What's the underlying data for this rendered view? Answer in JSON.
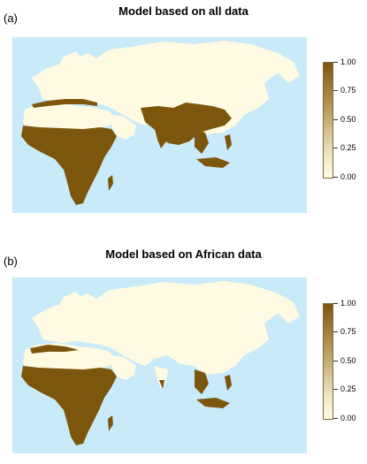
{
  "panels": [
    {
      "tag": "(a)",
      "title": "Model based on all data",
      "legend_ticks": [
        "1.00",
        "0.75",
        "0.50",
        "0.25",
        "0.00"
      ]
    },
    {
      "tag": "(b)",
      "title": "Model based on African data",
      "legend_ticks": [
        "1.00",
        "0.75",
        "0.50",
        "0.25",
        "0.00"
      ]
    }
  ],
  "colors": {
    "ocean": "#c9eaf8",
    "land_low": "#fffbe2",
    "land_high": "#7d560e"
  }
}
